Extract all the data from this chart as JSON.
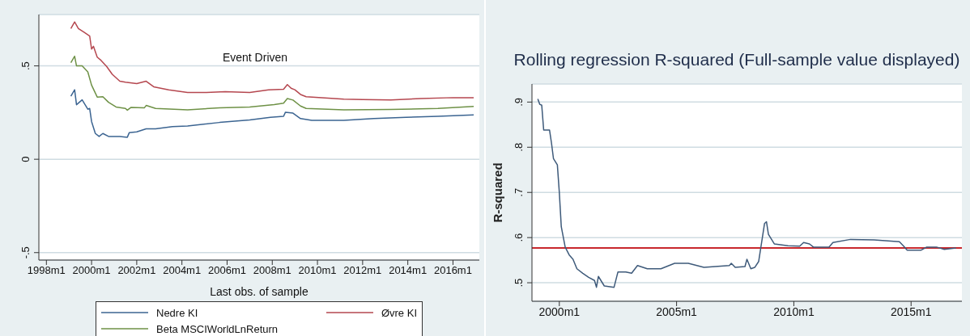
{
  "chart_data": [
    {
      "type": "line",
      "title": "Event Driven",
      "xlabel": "Last obs. of sample",
      "grid": "y",
      "legend": "bottom",
      "xlim": [
        "1997-09",
        "2017-03"
      ],
      "ylim": [
        -0.54,
        0.775
      ],
      "xticks": [
        {
          "value": "1998-01",
          "label": "1998m1"
        },
        {
          "value": "2000-01",
          "label": "2000m1"
        },
        {
          "value": "2002-01",
          "label": "2002m1"
        },
        {
          "value": "2004-01",
          "label": "2004m1"
        },
        {
          "value": "2006-01",
          "label": "2006m1"
        },
        {
          "value": "2008-01",
          "label": "2008m1"
        },
        {
          "value": "2010-01",
          "label": "2010m1"
        },
        {
          "value": "2012-01",
          "label": "2012m1"
        },
        {
          "value": "2014-01",
          "label": "2014m1"
        },
        {
          "value": "2016-01",
          "label": "2016m1"
        }
      ],
      "yticks": [
        {
          "value": -0.5,
          "label": "-.5"
        },
        0,
        {
          "value": 0.5,
          "label": ".5"
        }
      ],
      "series": [
        {
          "name": "Nedre KI",
          "color": "#3b6491",
          "x": [
            "1999-02",
            "1999-04",
            "1999-05",
            "1999-08",
            "1999-11",
            "1999-12",
            "2000-01",
            "2000-03",
            "2000-05",
            "2000-07",
            "2000-10",
            "2001-04",
            "2001-08",
            "2001-09",
            "2002-01",
            "2002-06",
            "2002-11",
            "2003-08",
            "2004-04",
            "2005-09",
            "2007-01",
            "2007-12",
            "2008-07",
            "2008-08",
            "2008-12",
            "2009-04",
            "2009-10",
            "2011-03",
            "2012-07",
            "2013-12",
            "2015-05",
            "2016-12"
          ],
          "values": [
            0.338,
            0.372,
            0.292,
            0.318,
            0.268,
            0.272,
            0.202,
            0.138,
            0.122,
            0.138,
            0.122,
            0.122,
            0.118,
            0.142,
            0.147,
            0.163,
            0.163,
            0.175,
            0.178,
            0.197,
            0.21,
            0.225,
            0.23,
            0.252,
            0.247,
            0.218,
            0.208,
            0.208,
            0.218,
            0.225,
            0.23,
            0.238
          ]
        },
        {
          "name": "Øvre KI",
          "color": "#b5474f",
          "x": [
            "1999-02",
            "1999-04",
            "1999-06",
            "1999-09",
            "1999-12",
            "2000-01",
            "2000-02",
            "2000-04",
            "2000-06",
            "2000-09",
            "2000-12",
            "2001-04",
            "2001-07",
            "2002-01",
            "2002-06",
            "2002-10",
            "2003-06",
            "2004-04",
            "2005-02",
            "2005-12",
            "2007-01",
            "2007-11",
            "2008-07",
            "2008-09",
            "2008-11",
            "2009-01",
            "2009-04",
            "2009-07",
            "2010-05",
            "2011-03",
            "2012-01",
            "2013-04",
            "2014-08",
            "2016-01",
            "2016-12"
          ],
          "values": [
            0.7,
            0.735,
            0.7,
            0.68,
            0.66,
            0.59,
            0.605,
            0.547,
            0.53,
            0.497,
            0.455,
            0.418,
            0.413,
            0.405,
            0.418,
            0.388,
            0.372,
            0.358,
            0.358,
            0.362,
            0.358,
            0.372,
            0.375,
            0.4,
            0.38,
            0.372,
            0.347,
            0.335,
            0.328,
            0.322,
            0.32,
            0.318,
            0.325,
            0.33,
            0.33
          ]
        },
        {
          "name": "Beta MSCIWorldLnReturn",
          "color": "#6e9146",
          "x": [
            "1999-02",
            "1999-04",
            "1999-05",
            "1999-08",
            "1999-11",
            "2000-01",
            "2000-04",
            "2000-07",
            "2000-10",
            "2001-02",
            "2001-07",
            "2001-08",
            "2001-10",
            "2002-05",
            "2002-06",
            "2002-11",
            "2004-04",
            "2005-09",
            "2007-01",
            "2008-02",
            "2008-07",
            "2008-09",
            "2008-12",
            "2009-04",
            "2009-07",
            "2011-03",
            "2013-04",
            "2015-05",
            "2016-12"
          ],
          "values": [
            0.517,
            0.552,
            0.5,
            0.5,
            0.468,
            0.397,
            0.333,
            0.335,
            0.305,
            0.28,
            0.272,
            0.263,
            0.278,
            0.275,
            0.288,
            0.272,
            0.265,
            0.275,
            0.28,
            0.293,
            0.3,
            0.325,
            0.317,
            0.285,
            0.272,
            0.265,
            0.267,
            0.272,
            0.283
          ]
        }
      ]
    },
    {
      "type": "line",
      "title": "Rolling regression R-squared (Full-sample value displayed)",
      "ylabel": "R-squared",
      "grid": "y",
      "xlim": [
        "1998-11",
        "2017-03"
      ],
      "ylim": [
        0.459,
        0.94
      ],
      "xticks": [
        {
          "value": "2000-01",
          "label": "2000m1"
        },
        {
          "value": "2005-01",
          "label": "2005m1"
        },
        {
          "value": "2010-01",
          "label": "2010m1"
        },
        {
          "value": "2015-01",
          "label": "2015m1"
        }
      ],
      "yticks": [
        {
          "value": 0.5,
          "label": ".5"
        },
        {
          "value": 0.6,
          "label": ".6"
        },
        {
          "value": 0.7,
          "label": ".7"
        },
        {
          "value": 0.8,
          "label": ".8"
        },
        {
          "value": 0.9,
          "label": ".9"
        }
      ],
      "ref_lines": [
        {
          "axis": "y",
          "value": 0.577,
          "color": "#c8282d"
        }
      ],
      "series": [
        {
          "color": "#3e5a7a",
          "x": [
            "1999-02",
            "1999-03",
            "1999-04",
            "1999-05",
            "1999-08",
            "1999-09",
            "1999-10",
            "1999-12",
            "2000-01",
            "2000-02",
            "2000-04",
            "2000-06",
            "2000-08",
            "2000-10",
            "2001-01",
            "2001-04",
            "2001-07",
            "2001-08",
            "2001-09",
            "2001-12",
            "2002-05",
            "2002-07",
            "2002-11",
            "2003-02",
            "2003-05",
            "2003-10",
            "2004-05",
            "2004-12",
            "2005-07",
            "2006-03",
            "2007-04",
            "2007-05",
            "2007-07",
            "2007-12",
            "2008-01",
            "2008-03",
            "2008-05",
            "2008-07",
            "2008-10",
            "2008-11",
            "2008-12",
            "2009-03",
            "2009-10",
            "2010-04",
            "2010-06",
            "2010-09",
            "2010-11",
            "2011-07",
            "2011-09",
            "2012-06",
            "2013-06",
            "2014-07",
            "2014-09",
            "2014-11",
            "2015-06",
            "2015-09",
            "2016-02",
            "2016-06",
            "2016-12"
          ],
          "values": [
            0.907,
            0.895,
            0.893,
            0.838,
            0.838,
            0.809,
            0.775,
            0.761,
            0.7,
            0.624,
            0.579,
            0.562,
            0.552,
            0.531,
            0.521,
            0.512,
            0.505,
            0.49,
            0.514,
            0.493,
            0.49,
            0.524,
            0.524,
            0.521,
            0.538,
            0.531,
            0.531,
            0.543,
            0.543,
            0.534,
            0.538,
            0.543,
            0.534,
            0.536,
            0.552,
            0.531,
            0.534,
            0.547,
            0.631,
            0.635,
            0.607,
            0.586,
            0.582,
            0.581,
            0.589,
            0.586,
            0.579,
            0.579,
            0.589,
            0.596,
            0.595,
            0.591,
            0.582,
            0.572,
            0.572,
            0.579,
            0.579,
            0.574,
            0.577
          ]
        }
      ]
    }
  ]
}
